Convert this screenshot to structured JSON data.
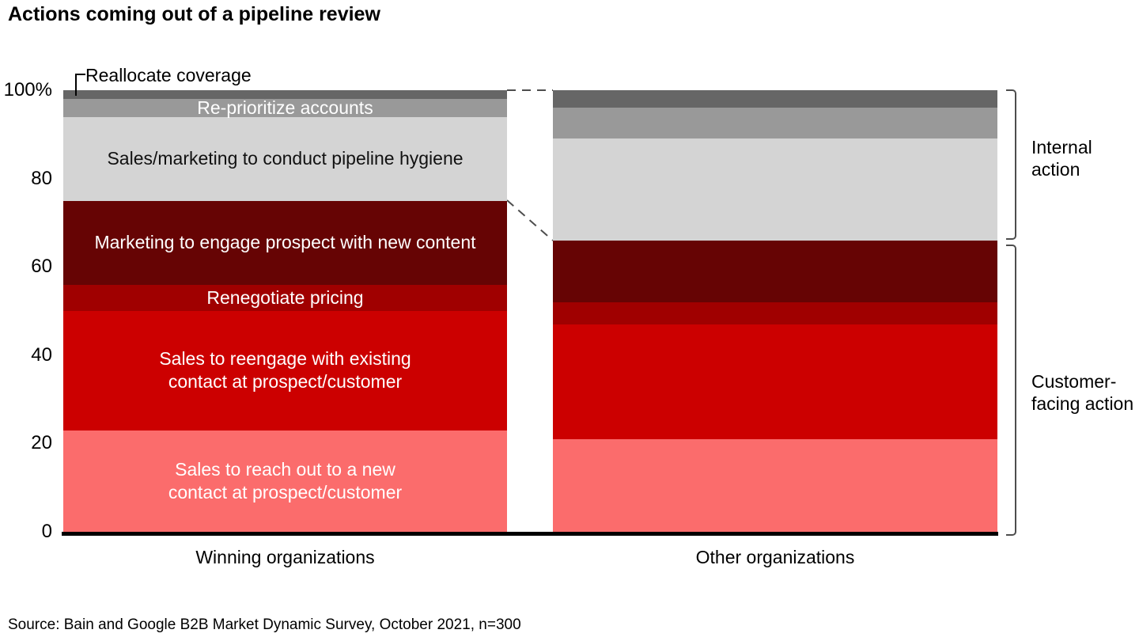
{
  "title": "Actions coming out of a pipeline review",
  "source": "Source: Bain and Google B2B Market Dynamic Survey, October 2021, n=300",
  "annotations": {
    "internal_label": "Internal action",
    "customer_label": "Customer-facing action",
    "callout_label": "Reallocate coverage"
  },
  "chart_data": {
    "type": "bar",
    "subtype": "100pct-stacked-column",
    "title": "Actions coming out of a pipeline review",
    "unit": "percent",
    "ylim": [
      0,
      100
    ],
    "grid": false,
    "legend_position": "labels-inside-first-bar",
    "yticks": [
      {
        "label": "100%",
        "value": 100
      },
      {
        "label": "80",
        "value": 80
      },
      {
        "label": "60",
        "value": 60
      },
      {
        "label": "40",
        "value": 40
      },
      {
        "label": "20",
        "value": 20
      },
      {
        "label": "0",
        "value": 0
      }
    ],
    "categories": [
      "Winning organizations",
      "Other organizations"
    ],
    "series_bottom_to_top": [
      {
        "name": "Sales to reach out to a new contact at prospect/customer",
        "label": "Sales to reach out to a new\ncontact at prospect/customer",
        "group": "Customer-facing action",
        "color": "#fb6c6c",
        "label_color": "#ffffff",
        "values": [
          23,
          21
        ]
      },
      {
        "name": "Sales to reengage with existing contact at prospect/customer",
        "label": "Sales to reengage with existing\ncontact at prospect/customer",
        "group": "Customer-facing action",
        "color": "#cc0000",
        "label_color": "#ffffff",
        "values": [
          27,
          26
        ]
      },
      {
        "name": "Renegotiate pricing",
        "label": "Renegotiate pricing",
        "group": "Customer-facing action",
        "color": "#a00000",
        "label_color": "#ffffff",
        "values": [
          6,
          5
        ]
      },
      {
        "name": "Marketing to engage prospect with new content",
        "label": "Marketing to engage prospect with new content",
        "group": "Customer-facing action",
        "color": "#660404",
        "label_color": "#ffffff",
        "values": [
          19,
          14
        ]
      },
      {
        "name": "Sales/marketing to conduct pipeline hygiene",
        "label": "Sales/marketing to conduct pipeline hygiene",
        "group": "Internal action",
        "color": "#d4d4d4",
        "label_color": "#111111",
        "hatch": true,
        "values": [
          19,
          23
        ]
      },
      {
        "name": "Re-prioritize accounts",
        "label": "Re-prioritize accounts",
        "group": "Internal action",
        "color": "#999999",
        "label_color": "#ffffff",
        "values": [
          4,
          7
        ]
      },
      {
        "name": "Reallocate coverage",
        "label": "",
        "label_outside": "Reallocate coverage",
        "group": "Internal action",
        "color": "#666666",
        "label_color": "#000000",
        "values": [
          2,
          4
        ]
      }
    ]
  }
}
